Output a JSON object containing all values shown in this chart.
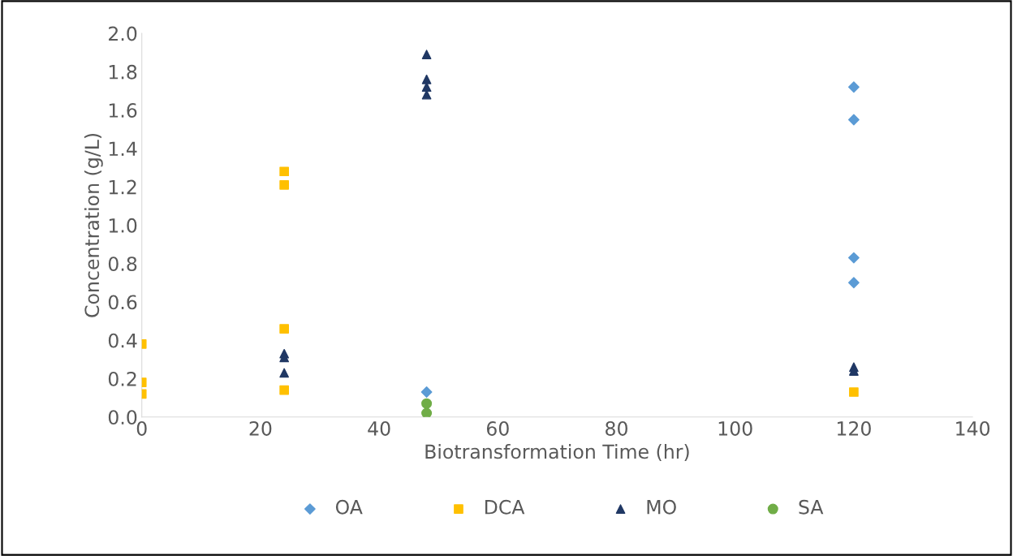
{
  "chart_data": {
    "type": "scatter",
    "xlabel": "Biotransformation Time (hr)",
    "ylabel": "Concentration (g/L)",
    "xlim": [
      0,
      140
    ],
    "xticks": [
      0,
      20,
      40,
      60,
      80,
      100,
      120,
      140
    ],
    "ylim": [
      0,
      2.0
    ],
    "yticks": [
      {
        "value": 0,
        "label": "0.0"
      },
      {
        "value": 0.2,
        "label": "0.2"
      },
      {
        "value": 0.4,
        "label": "0.4"
      },
      {
        "value": 0.6,
        "label": "0.6"
      },
      {
        "value": 0.8,
        "label": "0.8"
      },
      {
        "value": 1.0,
        "label": "1.0"
      },
      {
        "value": 1.2,
        "label": "1.2"
      },
      {
        "value": 1.4,
        "label": "1.4"
      },
      {
        "value": 1.6,
        "label": "1.6"
      },
      {
        "value": 1.8,
        "label": "1.8"
      },
      {
        "value": 2.0,
        "label": "2.0"
      }
    ],
    "grid": false,
    "legend": "bottom",
    "series": [
      {
        "name": "OA",
        "color": "#5b9bd5",
        "marker": "diamond",
        "x": [
          48,
          120,
          120,
          120,
          120
        ],
        "values": [
          0.13,
          1.72,
          1.55,
          0.83,
          0.7
        ]
      },
      {
        "name": "DCA",
        "color": "#ffc000",
        "marker": "square",
        "x": [
          0,
          0,
          0,
          24,
          24,
          24,
          24,
          120
        ],
        "values": [
          0.38,
          0.18,
          0.12,
          1.28,
          1.21,
          0.46,
          0.14,
          0.13
        ]
      },
      {
        "name": "MO",
        "color": "#203864",
        "marker": "triangle",
        "x": [
          24,
          24,
          24,
          48,
          48,
          48,
          48,
          120,
          120
        ],
        "values": [
          0.33,
          0.31,
          0.23,
          1.89,
          1.76,
          1.72,
          1.68,
          0.26,
          0.24
        ]
      },
      {
        "name": "SA",
        "color": "#70ad47",
        "marker": "circle",
        "x": [
          48,
          48
        ],
        "values": [
          0.07,
          0.02
        ]
      }
    ]
  }
}
